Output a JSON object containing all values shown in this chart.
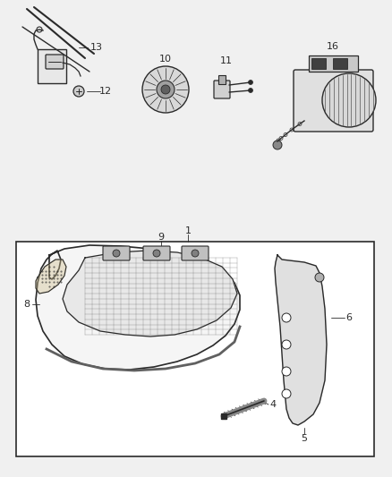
{
  "bg_color": "#f0f0f0",
  "fig_width": 4.38,
  "fig_height": 5.33,
  "dpi": 100,
  "gray": "#2a2a2a",
  "light_gray": "#888888",
  "mid_gray": "#555555"
}
